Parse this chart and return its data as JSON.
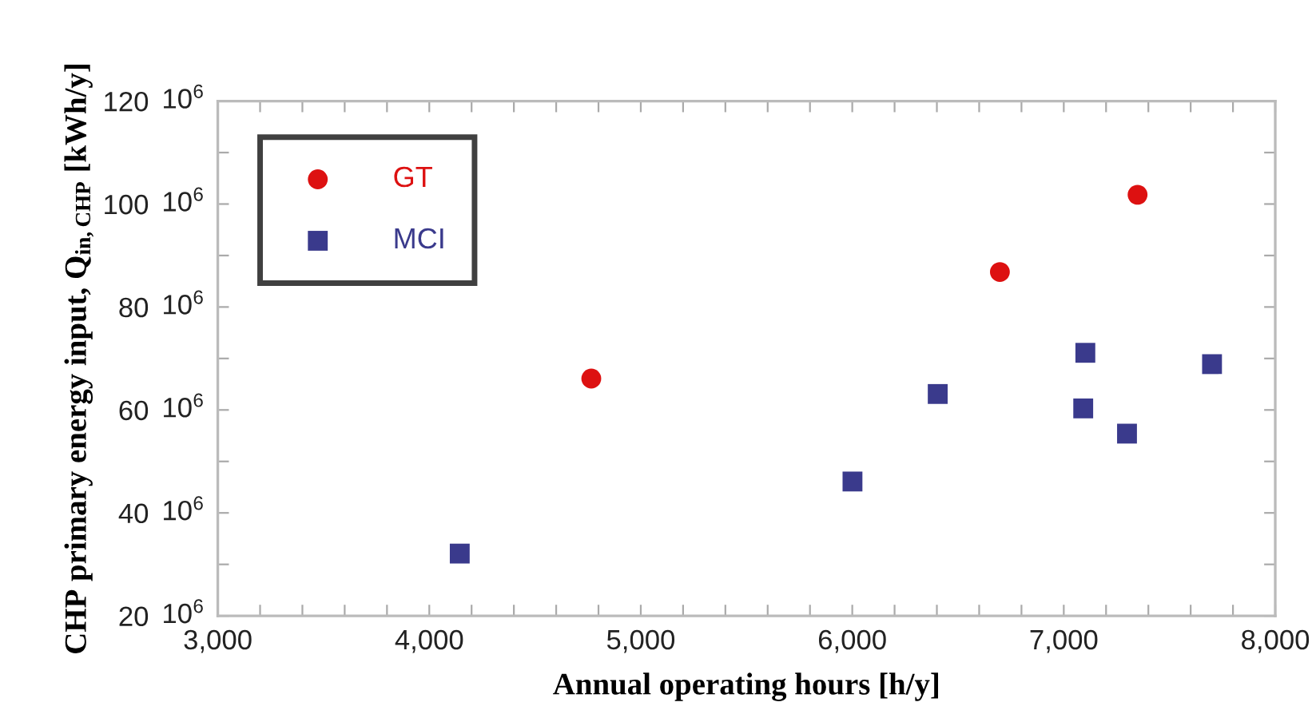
{
  "chart_data": {
    "type": "scatter",
    "xlabel": "Annual operating hours [h/y]",
    "ylabel": "CHP primary energy input, Q$_{in,CHP}$ [kWh/y]",
    "annotations": [
      "10$^{6}$",
      "10$^{6}$",
      "10$^{6}$",
      "10$^{6}$",
      "10$^{6}$",
      "10$^{6}$"
    ],
    "xlim": [
      3000,
      8000
    ],
    "xticks": [
      {
        "value": 3000,
        "label": "3,000"
      },
      {
        "value": 3200,
        "label": null
      },
      {
        "value": 3400,
        "label": null
      },
      {
        "value": 3600,
        "label": null
      },
      {
        "value": 3800,
        "label": null
      },
      {
        "value": 4000,
        "label": "4,000"
      },
      {
        "value": 4200,
        "label": null
      },
      {
        "value": 4400,
        "label": null
      },
      {
        "value": 4600,
        "label": null
      },
      {
        "value": 4800,
        "label": null
      },
      {
        "value": 5000,
        "label": "5,000"
      },
      {
        "value": 5200,
        "label": null
      },
      {
        "value": 5400,
        "label": null
      },
      {
        "value": 5600,
        "label": null
      },
      {
        "value": 5800,
        "label": null
      },
      {
        "value": 6000,
        "label": "6,000"
      },
      {
        "value": 6200,
        "label": null
      },
      {
        "value": 6400,
        "label": null
      },
      {
        "value": 6600,
        "label": null
      },
      {
        "value": 6800,
        "label": null
      },
      {
        "value": 7000,
        "label": "7,000"
      },
      {
        "value": 7200,
        "label": null
      },
      {
        "value": 7400,
        "label": null
      },
      {
        "value": 7600,
        "label": null
      },
      {
        "value": 7800,
        "label": null
      },
      {
        "value": 8000,
        "label": "8,000"
      }
    ],
    "ylim": [
      20,
      120
    ],
    "yticks": [
      20,
      {
        "value": 30,
        "label": null
      },
      40,
      {
        "value": 50,
        "label": null
      },
      60,
      {
        "value": 70,
        "label": null
      },
      80,
      {
        "value": 90,
        "label": null
      },
      100,
      {
        "value": 110,
        "label": null
      },
      120
    ],
    "grid": false,
    "legend": "top left",
    "series": [
      {
        "name": "GT",
        "color": "#dd1111",
        "marker": "circle",
        "x": [
          4766,
          6698,
          7349
        ],
        "values": [
          66.1,
          86.8,
          101.8
        ]
      },
      {
        "name": "MCI",
        "color": "#3a3a8c",
        "marker": "square",
        "x": [
          4144,
          6001,
          6404,
          7102,
          7092,
          7299,
          7701
        ],
        "values": [
          32.1,
          46.1,
          63.1,
          71.1,
          60.3,
          55.4,
          68.9
        ]
      }
    ]
  }
}
